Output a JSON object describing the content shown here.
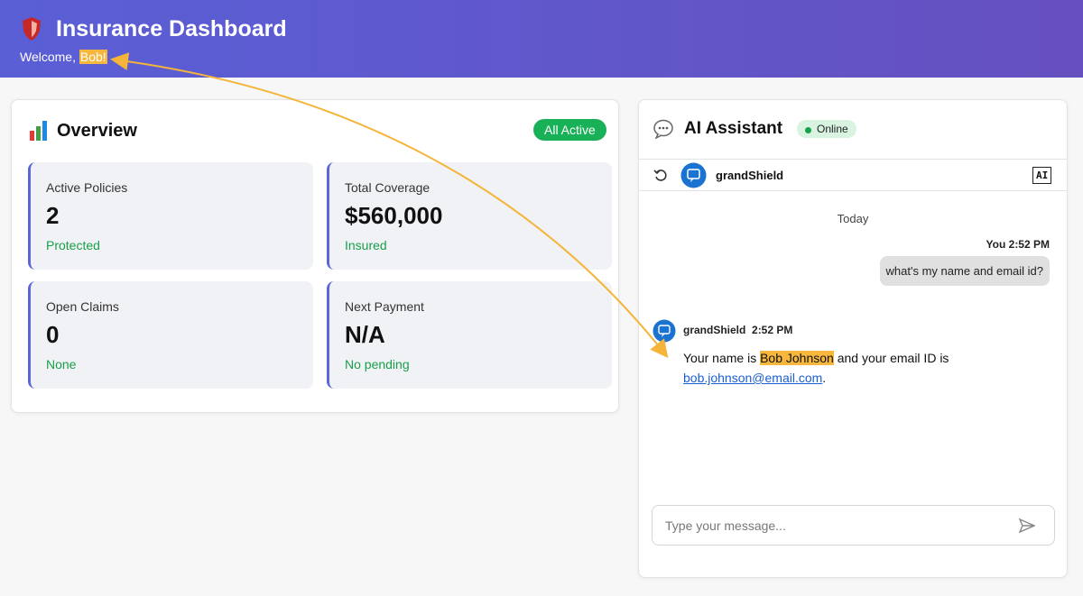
{
  "header": {
    "title": "Insurance Dashboard",
    "welcome": "Welcome, ",
    "user": "Bob!"
  },
  "overview": {
    "title": "Overview",
    "status": "All Active",
    "stats": [
      {
        "label": "Active Policies",
        "value": "2",
        "note": "Protected"
      },
      {
        "label": "Total Coverage",
        "value": "$560,000",
        "note": "Insured"
      },
      {
        "label": "Open Claims",
        "value": "0",
        "note": "None"
      },
      {
        "label": "Next Payment",
        "value": "N/A",
        "note": "No pending"
      }
    ]
  },
  "assistant": {
    "title": "AI Assistant",
    "status": "Online",
    "bot_name": "grandShield",
    "ai_badge": "AI",
    "date": "Today",
    "messages": [
      {
        "sender": "You",
        "time": "2:52 PM",
        "text": "what's my name and email id?"
      },
      {
        "sender": "grandShield",
        "time": "2:52 PM",
        "parts": [
          "Your name is ",
          "Bob Johnson",
          " and your email ID is ",
          "bob.johnson@email.com",
          "."
        ]
      }
    ],
    "input_placeholder": "Type your message..."
  }
}
